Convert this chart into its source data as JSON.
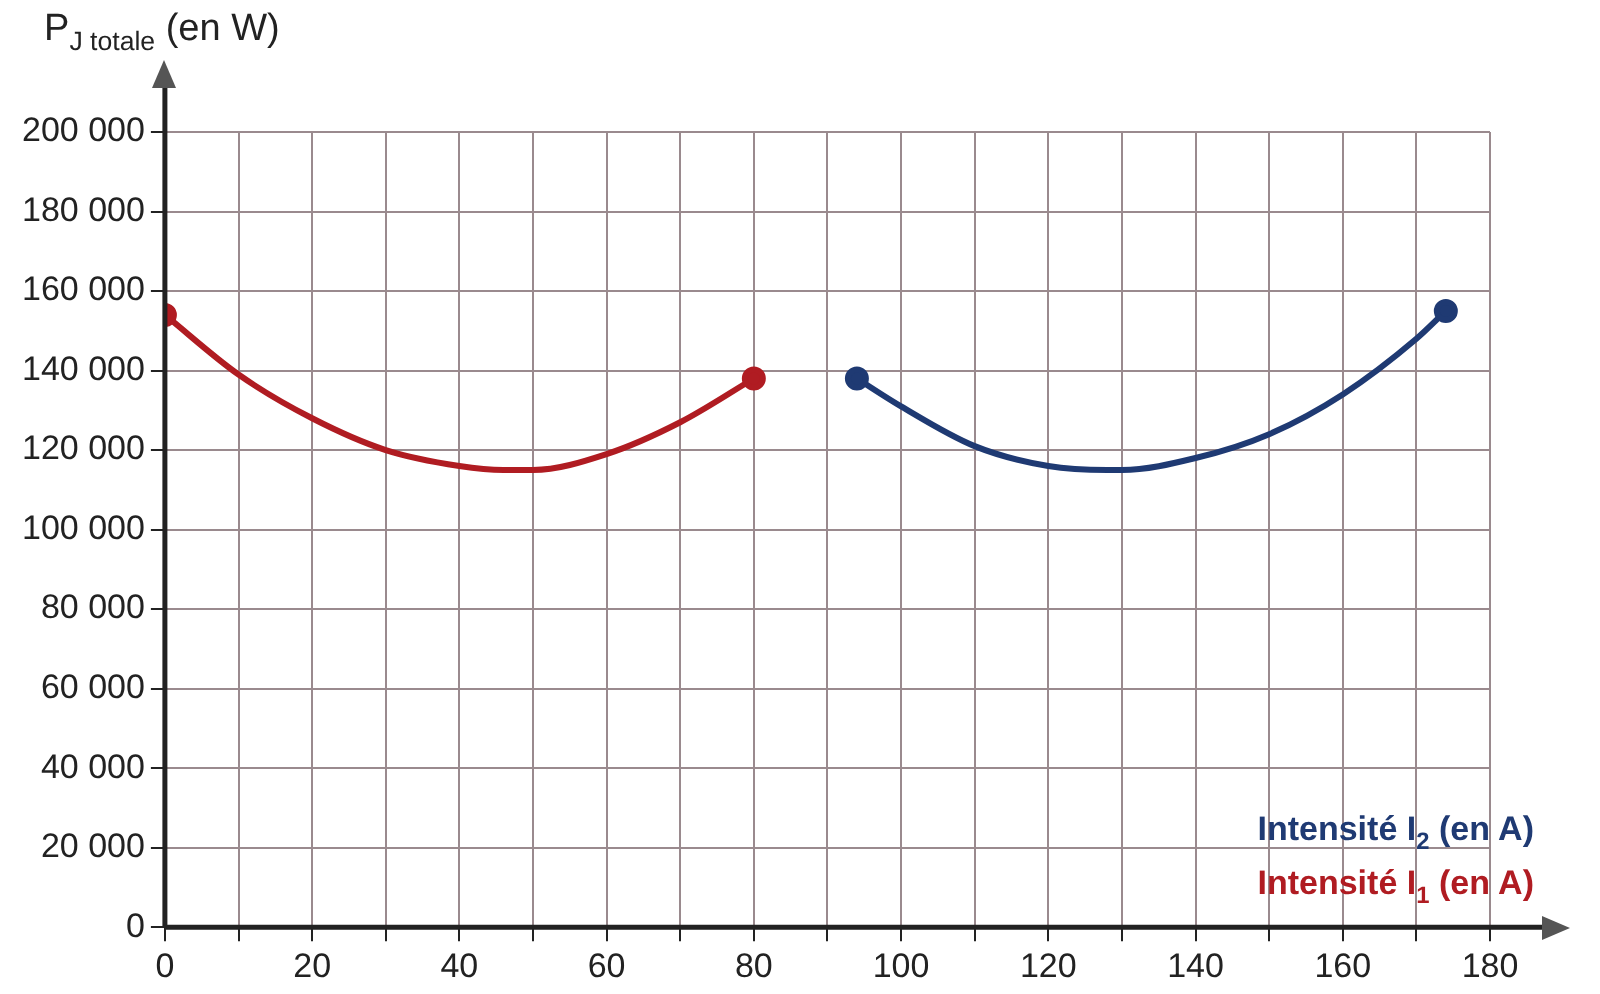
{
  "chart_data": {
    "type": "line",
    "ylabel": "P$_{J totale}$ (en W)",
    "series": [
      {
        "name": "Intensité I$_{1}$ (en A)",
        "color": "#b01c22",
        "x": [
          0,
          10,
          20,
          30,
          40,
          46,
          50,
          60,
          70,
          80
        ],
        "values": [
          154000,
          139000,
          128000,
          120000,
          116000,
          115000,
          115000,
          119000,
          127000,
          138000
        ]
      },
      {
        "name": "Intensité I$_{2}$ (en A)",
        "color": "#1f3a73",
        "x": [
          94,
          100,
          110,
          120,
          128,
          130,
          140,
          150,
          160,
          170,
          174
        ],
        "values": [
          138000,
          131000,
          121000,
          116000,
          115000,
          115000,
          118000,
          124000,
          134000,
          148000,
          155000
        ]
      }
    ],
    "xlim": [
      0,
      180
    ],
    "xticks": [
      0,
      {
        "value": 10,
        "label": null
      },
      20,
      {
        "value": 30,
        "label": null
      },
      40,
      {
        "value": 50,
        "label": null
      },
      60,
      {
        "value": 70,
        "label": null
      },
      80,
      {
        "value": 90,
        "label": null
      },
      100,
      {
        "value": 110,
        "label": null
      },
      120,
      {
        "value": 130,
        "label": null
      },
      140,
      {
        "value": 150,
        "label": null
      },
      160,
      {
        "value": 170,
        "label": null
      },
      180
    ],
    "ylim": [
      0,
      200000
    ],
    "yticks": [
      0,
      {
        "value": 20000,
        "label": "20 000"
      },
      {
        "value": 40000,
        "label": "40 000"
      },
      {
        "value": 60000,
        "label": "60 000"
      },
      {
        "value": 80000,
        "label": "80 000"
      },
      {
        "value": 100000,
        "label": "100 000"
      },
      {
        "value": 120000,
        "label": "120 000"
      },
      {
        "value": 140000,
        "label": "140 000"
      },
      {
        "value": 160000,
        "label": "160 000"
      },
      {
        "value": 180000,
        "label": "180 000"
      },
      {
        "value": 200000,
        "label": "200 000"
      }
    ],
    "grid": true,
    "legend": "bottom right",
    "line_style": "solid"
  }
}
